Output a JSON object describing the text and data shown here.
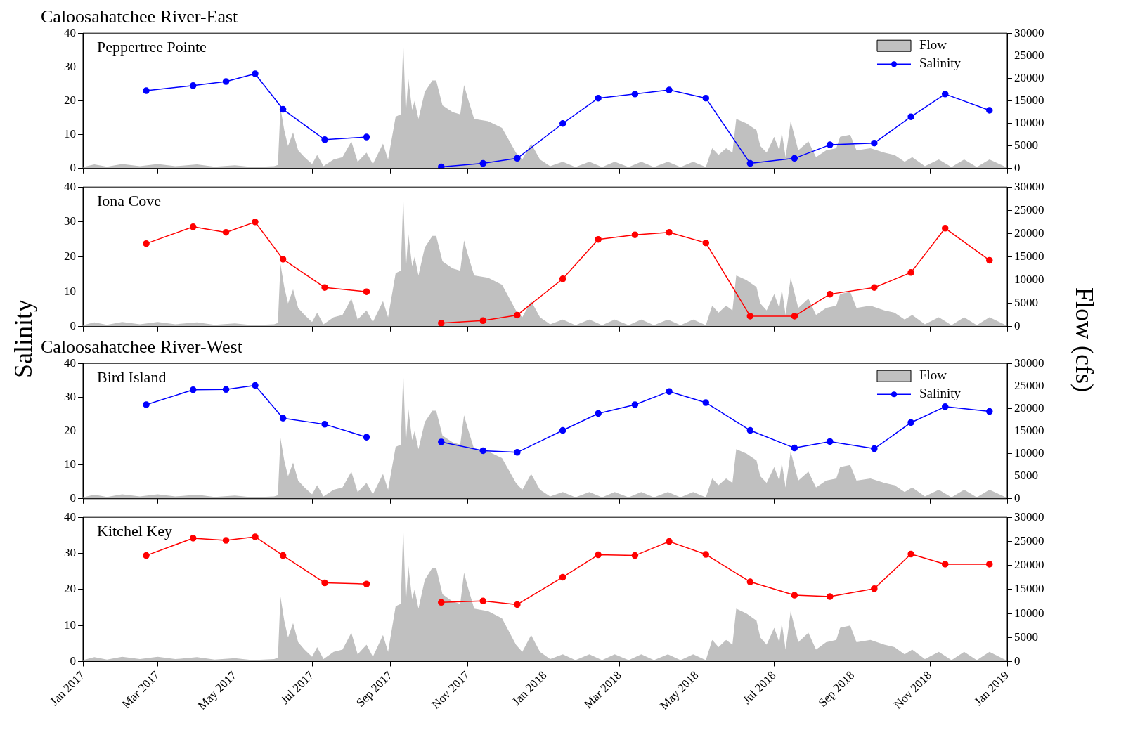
{
  "chart_data": [
    {
      "type": "line",
      "title": "Caloosahatchee River-East",
      "subtitle": "Peppertree Pointe",
      "xlim": [
        "2017-01-01",
        "2019-01-01"
      ],
      "xticks": [
        {
          "value": "2017-01",
          "label": null
        },
        {
          "value": "2017-03",
          "label": null
        },
        {
          "value": "2017-05",
          "label": null
        },
        {
          "value": "2017-07",
          "label": null
        },
        {
          "value": "2017-09",
          "label": null
        },
        {
          "value": "2017-11",
          "label": null
        },
        {
          "value": "2018-01",
          "label": null
        },
        {
          "value": "2018-03",
          "label": null
        },
        {
          "value": "2018-05",
          "label": null
        },
        {
          "value": "2018-07",
          "label": null
        },
        {
          "value": "2018-09",
          "label": null
        },
        {
          "value": "2018-11",
          "label": null
        },
        {
          "value": "2019-01",
          "label": null
        }
      ],
      "ylim": [
        0,
        40
      ],
      "yticks": [
        0,
        10,
        20,
        30,
        40
      ],
      "y2lim": [
        0,
        30000
      ],
      "y2ticks": [
        0,
        5000,
        10000,
        15000,
        20000,
        25000,
        30000
      ],
      "tick_labels": "y",
      "grid": false,
      "legend": "top right",
      "series": [
        {
          "name": "Flow",
          "type": "area",
          "axis": "y2",
          "color": "#c0c0c0",
          "x": [
            "2017-01-01",
            "2017-01-10",
            "2017-01-20",
            "2017-02-01",
            "2017-02-15",
            "2017-03-01",
            "2017-03-15",
            "2017-04-01",
            "2017-04-15",
            "2017-05-01",
            "2017-05-15",
            "2017-06-01",
            "2017-06-04",
            "2017-06-06",
            "2017-06-09",
            "2017-06-12",
            "2017-06-16",
            "2017-06-20",
            "2017-06-25",
            "2017-07-01",
            "2017-07-05",
            "2017-07-10",
            "2017-07-18",
            "2017-07-25",
            "2017-08-01",
            "2017-08-06",
            "2017-08-13",
            "2017-08-18",
            "2017-08-26",
            "2017-08-30",
            "2017-09-05",
            "2017-09-09",
            "2017-09-11",
            "2017-09-13",
            "2017-09-15",
            "2017-09-18",
            "2017-09-20",
            "2017-09-23",
            "2017-09-28",
            "2017-10-04",
            "2017-10-07",
            "2017-10-12",
            "2017-10-20",
            "2017-10-26",
            "2017-10-29",
            "2017-11-01",
            "2017-11-06",
            "2017-11-17",
            "2017-11-28",
            "2017-12-03",
            "2017-12-09",
            "2017-12-14",
            "2017-12-21",
            "2017-12-28",
            "2018-01-05",
            "2018-01-15",
            "2018-01-25",
            "2018-02-05",
            "2018-02-15",
            "2018-02-25",
            "2018-03-08",
            "2018-03-18",
            "2018-03-28",
            "2018-04-08",
            "2018-04-18",
            "2018-04-28",
            "2018-05-08",
            "2018-05-13",
            "2018-05-18",
            "2018-05-24",
            "2018-05-29",
            "2018-06-01",
            "2018-06-09",
            "2018-06-17",
            "2018-06-20",
            "2018-06-25",
            "2018-07-01",
            "2018-07-05",
            "2018-07-07",
            "2018-07-10",
            "2018-07-14",
            "2018-07-20",
            "2018-07-28",
            "2018-08-03",
            "2018-08-11",
            "2018-08-19",
            "2018-08-22",
            "2018-08-30",
            "2018-09-04",
            "2018-09-15",
            "2018-09-26",
            "2018-10-04",
            "2018-10-12",
            "2018-10-18",
            "2018-10-28",
            "2018-11-08",
            "2018-11-18",
            "2018-11-28",
            "2018-12-08",
            "2018-12-18",
            "2018-12-31"
          ],
          "values": [
            300,
            900,
            400,
            1000,
            500,
            1000,
            500,
            900,
            400,
            700,
            300,
            500,
            800,
            13500,
            8500,
            5000,
            8000,
            4000,
            2500,
            1000,
            3000,
            500,
            2000,
            2500,
            6000,
            1500,
            3500,
            1000,
            5500,
            2000,
            11500,
            12000,
            28000,
            12000,
            20000,
            13000,
            15000,
            11000,
            17000,
            19500,
            19500,
            14000,
            12500,
            12000,
            18500,
            15500,
            11000,
            10500,
            9000,
            6500,
            3500,
            2000,
            5500,
            2000,
            500,
            1500,
            300,
            1500,
            300,
            1500,
            300,
            1500,
            300,
            1500,
            300,
            1500,
            300,
            4500,
            3000,
            4500,
            3500,
            11000,
            10000,
            8500,
            5000,
            3500,
            7000,
            4000,
            8000,
            2500,
            10500,
            4000,
            6000,
            2500,
            4000,
            4500,
            7000,
            7500,
            4000,
            4500,
            3500,
            3000,
            1500,
            2500,
            500,
            2000,
            300,
            2000,
            300,
            2000,
            300
          ]
        },
        {
          "name": "Salinity",
          "marker": "circle",
          "axis": "y",
          "color": "#0000ff",
          "x": [
            "2017-02-20",
            "2017-03-29",
            "2017-04-24",
            "2017-05-17",
            "2017-06-08",
            "2017-07-11",
            "2017-08-13",
            "2017-09-20",
            "2017-10-11",
            "2017-11-13",
            "2017-12-10",
            "2018-01-15",
            "2018-02-12",
            "2018-03-13",
            "2018-04-09",
            "2018-05-08",
            "2018-06-12",
            "2018-07-17",
            "2018-08-14",
            "2018-09-18",
            "2018-10-17",
            "2018-11-13",
            "2018-12-18"
          ],
          "values": [
            23,
            24.5,
            25.7,
            28,
            17.5,
            8.5,
            9.3,
            null,
            0.5,
            1.5,
            3,
            13.3,
            20.8,
            22,
            23.2,
            20.8,
            1.5,
            3,
            7,
            7.5,
            15.3,
            22,
            17.2
          ]
        }
      ]
    },
    {
      "type": "line",
      "subtitle": "Iona Cove",
      "ylabel": "Salinity",
      "y2label": "Flow (cfs)",
      "xlim": [
        "2017-01-01",
        "2019-01-01"
      ],
      "xticks": [
        {
          "value": "2017-01",
          "label": null
        },
        {
          "value": "2017-03",
          "label": null
        },
        {
          "value": "2017-05",
          "label": null
        },
        {
          "value": "2017-07",
          "label": null
        },
        {
          "value": "2017-09",
          "label": null
        },
        {
          "value": "2017-11",
          "label": null
        },
        {
          "value": "2018-01",
          "label": null
        },
        {
          "value": "2018-03",
          "label": null
        },
        {
          "value": "2018-05",
          "label": null
        },
        {
          "value": "2018-07",
          "label": null
        },
        {
          "value": "2018-09",
          "label": null
        },
        {
          "value": "2018-11",
          "label": null
        },
        {
          "value": "2019-01",
          "label": null
        }
      ],
      "ylim": [
        0,
        40
      ],
      "yticks": [
        0,
        10,
        20,
        30,
        40
      ],
      "y2lim": [
        0,
        30000
      ],
      "y2ticks": [
        0,
        5000,
        10000,
        15000,
        20000,
        25000,
        30000
      ],
      "tick_labels": "y",
      "grid": false,
      "legend": false,
      "series": [
        {
          "type": "area",
          "axis": "y2",
          "color": "#c0c0c0",
          "x": [
            "2017-01-01",
            "2017-01-10",
            "2017-01-20",
            "2017-02-01",
            "2017-02-15",
            "2017-03-01",
            "2017-03-15",
            "2017-04-01",
            "2017-04-15",
            "2017-05-01",
            "2017-05-15",
            "2017-06-01",
            "2017-06-04",
            "2017-06-06",
            "2017-06-09",
            "2017-06-12",
            "2017-06-16",
            "2017-06-20",
            "2017-06-25",
            "2017-07-01",
            "2017-07-05",
            "2017-07-10",
            "2017-07-18",
            "2017-07-25",
            "2017-08-01",
            "2017-08-06",
            "2017-08-13",
            "2017-08-18",
            "2017-08-26",
            "2017-08-30",
            "2017-09-05",
            "2017-09-09",
            "2017-09-11",
            "2017-09-13",
            "2017-09-15",
            "2017-09-18",
            "2017-09-20",
            "2017-09-23",
            "2017-09-28",
            "2017-10-04",
            "2017-10-07",
            "2017-10-12",
            "2017-10-20",
            "2017-10-26",
            "2017-10-29",
            "2017-11-01",
            "2017-11-06",
            "2017-11-17",
            "2017-11-28",
            "2017-12-03",
            "2017-12-09",
            "2017-12-14",
            "2017-12-21",
            "2017-12-28",
            "2018-01-05",
            "2018-01-15",
            "2018-01-25",
            "2018-02-05",
            "2018-02-15",
            "2018-02-25",
            "2018-03-08",
            "2018-03-18",
            "2018-03-28",
            "2018-04-08",
            "2018-04-18",
            "2018-04-28",
            "2018-05-08",
            "2018-05-13",
            "2018-05-18",
            "2018-05-24",
            "2018-05-29",
            "2018-06-01",
            "2018-06-09",
            "2018-06-17",
            "2018-06-20",
            "2018-06-25",
            "2018-07-01",
            "2018-07-05",
            "2018-07-07",
            "2018-07-10",
            "2018-07-14",
            "2018-07-20",
            "2018-07-28",
            "2018-08-03",
            "2018-08-11",
            "2018-08-19",
            "2018-08-22",
            "2018-08-30",
            "2018-09-04",
            "2018-09-15",
            "2018-09-26",
            "2018-10-04",
            "2018-10-12",
            "2018-10-18",
            "2018-10-28",
            "2018-11-08",
            "2018-11-18",
            "2018-11-28",
            "2018-12-08",
            "2018-12-18",
            "2018-12-31"
          ],
          "values": [
            300,
            900,
            400,
            1000,
            500,
            1000,
            500,
            900,
            400,
            700,
            300,
            500,
            800,
            13500,
            8500,
            5000,
            8000,
            4000,
            2500,
            1000,
            3000,
            500,
            2000,
            2500,
            6000,
            1500,
            3500,
            1000,
            5500,
            2000,
            11500,
            12000,
            28000,
            12000,
            20000,
            13000,
            15000,
            11000,
            17000,
            19500,
            19500,
            14000,
            12500,
            12000,
            18500,
            15500,
            11000,
            10500,
            9000,
            6500,
            3500,
            2000,
            5500,
            2000,
            500,
            1500,
            300,
            1500,
            300,
            1500,
            300,
            1500,
            300,
            1500,
            300,
            1500,
            300,
            4500,
            3000,
            4500,
            3500,
            11000,
            10000,
            8500,
            5000,
            3500,
            7000,
            4000,
            8000,
            2500,
            10500,
            4000,
            6000,
            2500,
            4000,
            4500,
            7000,
            7500,
            4000,
            4500,
            3500,
            3000,
            1500,
            2500,
            500,
            2000,
            300,
            2000,
            300,
            2000,
            300
          ]
        },
        {
          "marker": "circle",
          "axis": "y",
          "color": "#ff0000",
          "x": [
            "2017-02-20",
            "2017-03-29",
            "2017-04-24",
            "2017-05-17",
            "2017-06-08",
            "2017-07-11",
            "2017-08-13",
            "2017-09-20",
            "2017-10-11",
            "2017-11-13",
            "2017-12-10",
            "2018-01-15",
            "2018-02-12",
            "2018-03-13",
            "2018-04-09",
            "2018-05-08",
            "2018-06-12",
            "2018-07-17",
            "2018-08-14",
            "2018-09-18",
            "2018-10-17",
            "2018-11-13",
            "2018-12-18"
          ],
          "values": [
            23.8,
            28.6,
            27,
            30,
            19.3,
            11.2,
            10,
            null,
            1,
            1.7,
            3.3,
            13.7,
            25,
            26.3,
            27,
            24,
            3,
            3,
            9.3,
            11.2,
            15.5,
            28.2,
            19
          ]
        }
      ]
    },
    {
      "type": "line",
      "title": "Caloosahatchee River-West",
      "subtitle": "Bird Island",
      "xlim": [
        "2017-01-01",
        "2019-01-01"
      ],
      "xticks": [
        {
          "value": "2017-01",
          "label": null
        },
        {
          "value": "2017-03",
          "label": null
        },
        {
          "value": "2017-05",
          "label": null
        },
        {
          "value": "2017-07",
          "label": null
        },
        {
          "value": "2017-09",
          "label": null
        },
        {
          "value": "2017-11",
          "label": null
        },
        {
          "value": "2018-01",
          "label": null
        },
        {
          "value": "2018-03",
          "label": null
        },
        {
          "value": "2018-05",
          "label": null
        },
        {
          "value": "2018-07",
          "label": null
        },
        {
          "value": "2018-09",
          "label": null
        },
        {
          "value": "2018-11",
          "label": null
        },
        {
          "value": "2019-01",
          "label": null
        }
      ],
      "ylim": [
        0,
        40
      ],
      "yticks": [
        0,
        10,
        20,
        30,
        40
      ],
      "y2lim": [
        0,
        30000
      ],
      "y2ticks": [
        0,
        5000,
        10000,
        15000,
        20000,
        25000,
        30000
      ],
      "tick_labels": "y",
      "grid": false,
      "legend": "top right",
      "series": [
        {
          "name": "Flow",
          "type": "area",
          "axis": "y2",
          "color": "#c0c0c0",
          "x": [
            "2017-01-01",
            "2017-01-10",
            "2017-01-20",
            "2017-02-01",
            "2017-02-15",
            "2017-03-01",
            "2017-03-15",
            "2017-04-01",
            "2017-04-15",
            "2017-05-01",
            "2017-05-15",
            "2017-06-01",
            "2017-06-04",
            "2017-06-06",
            "2017-06-09",
            "2017-06-12",
            "2017-06-16",
            "2017-06-20",
            "2017-06-25",
            "2017-07-01",
            "2017-07-05",
            "2017-07-10",
            "2017-07-18",
            "2017-07-25",
            "2017-08-01",
            "2017-08-06",
            "2017-08-13",
            "2017-08-18",
            "2017-08-26",
            "2017-08-30",
            "2017-09-05",
            "2017-09-09",
            "2017-09-11",
            "2017-09-13",
            "2017-09-15",
            "2017-09-18",
            "2017-09-20",
            "2017-09-23",
            "2017-09-28",
            "2017-10-04",
            "2017-10-07",
            "2017-10-12",
            "2017-10-20",
            "2017-10-26",
            "2017-10-29",
            "2017-11-01",
            "2017-11-06",
            "2017-11-17",
            "2017-11-28",
            "2017-12-03",
            "2017-12-09",
            "2017-12-14",
            "2017-12-21",
            "2017-12-28",
            "2018-01-05",
            "2018-01-15",
            "2018-01-25",
            "2018-02-05",
            "2018-02-15",
            "2018-02-25",
            "2018-03-08",
            "2018-03-18",
            "2018-03-28",
            "2018-04-08",
            "2018-04-18",
            "2018-04-28",
            "2018-05-08",
            "2018-05-13",
            "2018-05-18",
            "2018-05-24",
            "2018-05-29",
            "2018-06-01",
            "2018-06-09",
            "2018-06-17",
            "2018-06-20",
            "2018-06-25",
            "2018-07-01",
            "2018-07-05",
            "2018-07-07",
            "2018-07-10",
            "2018-07-14",
            "2018-07-20",
            "2018-07-28",
            "2018-08-03",
            "2018-08-11",
            "2018-08-19",
            "2018-08-22",
            "2018-08-30",
            "2018-09-04",
            "2018-09-15",
            "2018-09-26",
            "2018-10-04",
            "2018-10-12",
            "2018-10-18",
            "2018-10-28",
            "2018-11-08",
            "2018-11-18",
            "2018-11-28",
            "2018-12-08",
            "2018-12-18",
            "2018-12-31"
          ],
          "values": [
            300,
            900,
            400,
            1000,
            500,
            1000,
            500,
            900,
            400,
            700,
            300,
            500,
            800,
            13500,
            8500,
            5000,
            8000,
            4000,
            2500,
            1000,
            3000,
            500,
            2000,
            2500,
            6000,
            1500,
            3500,
            1000,
            5500,
            2000,
            11500,
            12000,
            28000,
            12000,
            20000,
            13000,
            15000,
            11000,
            17000,
            19500,
            19500,
            14000,
            12500,
            12000,
            18500,
            15500,
            11000,
            10500,
            9000,
            6500,
            3500,
            2000,
            5500,
            2000,
            500,
            1500,
            300,
            1500,
            300,
            1500,
            300,
            1500,
            300,
            1500,
            300,
            1500,
            300,
            4500,
            3000,
            4500,
            3500,
            11000,
            10000,
            8500,
            5000,
            3500,
            7000,
            4000,
            8000,
            2500,
            10500,
            4000,
            6000,
            2500,
            4000,
            4500,
            7000,
            7500,
            4000,
            4500,
            3500,
            3000,
            1500,
            2500,
            500,
            2000,
            300,
            2000,
            300,
            2000,
            300
          ]
        },
        {
          "name": "Salinity",
          "marker": "circle",
          "axis": "y",
          "color": "#0000ff",
          "x": [
            "2017-02-20",
            "2017-03-29",
            "2017-04-24",
            "2017-05-17",
            "2017-06-08",
            "2017-07-11",
            "2017-08-13",
            "2017-09-20",
            "2017-10-11",
            "2017-11-13",
            "2017-12-10",
            "2018-01-15",
            "2018-02-12",
            "2018-03-13",
            "2018-04-09",
            "2018-05-08",
            "2018-06-12",
            "2018-07-17",
            "2018-08-14",
            "2018-09-18",
            "2018-10-17",
            "2018-11-13",
            "2018-12-18"
          ],
          "values": [
            27.8,
            32.2,
            32.3,
            33.5,
            23.8,
            22,
            18.2,
            null,
            16.8,
            14.2,
            13.7,
            20.2,
            25.2,
            27.8,
            31.7,
            28.4,
            20.2,
            15,
            16.9,
            14.8,
            22.5,
            27.2,
            25.8
          ]
        }
      ]
    },
    {
      "type": "line",
      "subtitle": "Kitchel Key",
      "xlim": [
        "2017-01-01",
        "2019-01-01"
      ],
      "xticks": [
        {
          "value": "2017-01",
          "label": "Jan 2017"
        },
        {
          "value": "2017-03",
          "label": "Mar 2017"
        },
        {
          "value": "2017-05",
          "label": "May 2017"
        },
        {
          "value": "2017-07",
          "label": "Jul 2017"
        },
        {
          "value": "2017-09",
          "label": "Sep 2017"
        },
        {
          "value": "2017-11",
          "label": "Nov 2017"
        },
        {
          "value": "2018-01",
          "label": "Jan 2018"
        },
        {
          "value": "2018-03",
          "label": "Mar 2018"
        },
        {
          "value": "2018-05",
          "label": "May 2018"
        },
        {
          "value": "2018-07",
          "label": "Jul 2018"
        },
        {
          "value": "2018-09",
          "label": "Sep 2018"
        },
        {
          "value": "2018-11",
          "label": "Nov 2018"
        },
        {
          "value": "2019-01",
          "label": "Jan 2019"
        }
      ],
      "ylim": [
        0,
        40
      ],
      "yticks": [
        0,
        10,
        20,
        30,
        40
      ],
      "y2lim": [
        0,
        30000
      ],
      "y2ticks": [
        0,
        5000,
        10000,
        15000,
        20000,
        25000,
        30000
      ],
      "grid": false,
      "legend": false,
      "series": [
        {
          "type": "area",
          "axis": "y2",
          "color": "#c0c0c0",
          "x": [
            "2017-01-01",
            "2017-01-10",
            "2017-01-20",
            "2017-02-01",
            "2017-02-15",
            "2017-03-01",
            "2017-03-15",
            "2017-04-01",
            "2017-04-15",
            "2017-05-01",
            "2017-05-15",
            "2017-06-01",
            "2017-06-04",
            "2017-06-06",
            "2017-06-09",
            "2017-06-12",
            "2017-06-16",
            "2017-06-20",
            "2017-06-25",
            "2017-07-01",
            "2017-07-05",
            "2017-07-10",
            "2017-07-18",
            "2017-07-25",
            "2017-08-01",
            "2017-08-06",
            "2017-08-13",
            "2017-08-18",
            "2017-08-26",
            "2017-08-30",
            "2017-09-05",
            "2017-09-09",
            "2017-09-11",
            "2017-09-13",
            "2017-09-15",
            "2017-09-18",
            "2017-09-20",
            "2017-09-23",
            "2017-09-28",
            "2017-10-04",
            "2017-10-07",
            "2017-10-12",
            "2017-10-20",
            "2017-10-26",
            "2017-10-29",
            "2017-11-01",
            "2017-11-06",
            "2017-11-17",
            "2017-11-28",
            "2017-12-03",
            "2017-12-09",
            "2017-12-14",
            "2017-12-21",
            "2017-12-28",
            "2018-01-05",
            "2018-01-15",
            "2018-01-25",
            "2018-02-05",
            "2018-02-15",
            "2018-02-25",
            "2018-03-08",
            "2018-03-18",
            "2018-03-28",
            "2018-04-08",
            "2018-04-18",
            "2018-04-28",
            "2018-05-08",
            "2018-05-13",
            "2018-05-18",
            "2018-05-24",
            "2018-05-29",
            "2018-06-01",
            "2018-06-09",
            "2018-06-17",
            "2018-06-20",
            "2018-06-25",
            "2018-07-01",
            "2018-07-05",
            "2018-07-07",
            "2018-07-10",
            "2018-07-14",
            "2018-07-20",
            "2018-07-28",
            "2018-08-03",
            "2018-08-11",
            "2018-08-19",
            "2018-08-22",
            "2018-08-30",
            "2018-09-04",
            "2018-09-15",
            "2018-09-26",
            "2018-10-04",
            "2018-10-12",
            "2018-10-18",
            "2018-10-28",
            "2018-11-08",
            "2018-11-18",
            "2018-11-28",
            "2018-12-08",
            "2018-12-18",
            "2018-12-31"
          ],
          "values": [
            300,
            900,
            400,
            1000,
            500,
            1000,
            500,
            900,
            400,
            700,
            300,
            500,
            800,
            13500,
            8500,
            5000,
            8000,
            4000,
            2500,
            1000,
            3000,
            500,
            2000,
            2500,
            6000,
            1500,
            3500,
            1000,
            5500,
            2000,
            11500,
            12000,
            28000,
            12000,
            20000,
            13000,
            15000,
            11000,
            17000,
            19500,
            19500,
            14000,
            12500,
            12000,
            18500,
            15500,
            11000,
            10500,
            9000,
            6500,
            3500,
            2000,
            5500,
            2000,
            500,
            1500,
            300,
            1500,
            300,
            1500,
            300,
            1500,
            300,
            1500,
            300,
            1500,
            300,
            4500,
            3000,
            4500,
            3500,
            11000,
            10000,
            8500,
            5000,
            3500,
            7000,
            4000,
            8000,
            2500,
            10500,
            4000,
            6000,
            2500,
            4000,
            4500,
            7000,
            7500,
            4000,
            4500,
            3500,
            3000,
            1500,
            2500,
            500,
            2000,
            300,
            2000,
            300,
            2000,
            300
          ]
        },
        {
          "marker": "circle",
          "axis": "y",
          "color": "#ff0000",
          "x": [
            "2017-02-20",
            "2017-03-29",
            "2017-04-24",
            "2017-05-17",
            "2017-06-08",
            "2017-07-11",
            "2017-08-13",
            "2017-09-20",
            "2017-10-11",
            "2017-11-13",
            "2017-12-10",
            "2018-01-15",
            "2018-02-12",
            "2018-03-13",
            "2018-04-09",
            "2018-05-08",
            "2018-06-12",
            "2018-07-17",
            "2018-08-14",
            "2018-09-18",
            "2018-10-17",
            "2018-11-13",
            "2018-12-18"
          ],
          "values": [
            29.4,
            34.2,
            33.6,
            34.6,
            29.4,
            21.8,
            21.5,
            null,
            16.4,
            16.8,
            15.8,
            23.4,
            29.6,
            29.4,
            33.3,
            29.7,
            22.1,
            18.4,
            18,
            20.2,
            29.8,
            27,
            27
          ]
        }
      ]
    }
  ]
}
